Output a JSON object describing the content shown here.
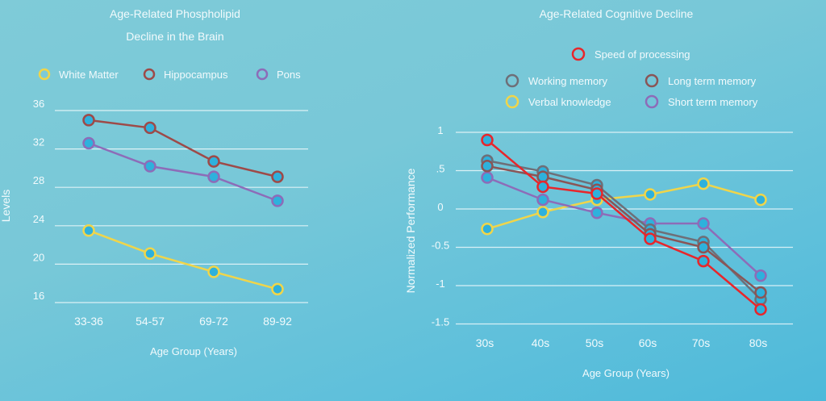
{
  "chart_data": [
    {
      "type": "line",
      "title": "Age-Related Phospholipid Decline in the Brain",
      "title_lines": [
        "Age-Related Phospholipid",
        "Decline in the Brain"
      ],
      "xlabel": "Age Group (Years)",
      "ylabel": "Levels",
      "categories": [
        "33-36",
        "54-57",
        "69-72",
        "89-92"
      ],
      "yticks": [
        16,
        20,
        24,
        28,
        32,
        36
      ],
      "ylim": [
        16,
        36
      ],
      "grid": true,
      "legend_position": "top",
      "series": [
        {
          "name": "White Matter",
          "color": "#f0d54a",
          "values": [
            23.5,
            21.1,
            19.2,
            17.4
          ]
        },
        {
          "name": "Hippocampus",
          "color": "#9e4a48",
          "values": [
            35.0,
            34.2,
            30.7,
            29.1
          ]
        },
        {
          "name": "Pons",
          "color": "#8d6cb8",
          "values": [
            32.6,
            30.2,
            29.1,
            26.6
          ]
        }
      ]
    },
    {
      "type": "line",
      "title": "Age-Related Cognitive Decline",
      "xlabel": "Age Group (Years)",
      "ylabel": "Normalized Performance",
      "categories": [
        "30s",
        "40s",
        "50s",
        "60s",
        "70s",
        "80s"
      ],
      "yticks": [
        1,
        0.5,
        0,
        -0.5,
        -1,
        -1.5
      ],
      "ytick_labels": [
        "1",
        ".5",
        "0",
        "-0.5",
        "-1",
        "-1.5"
      ],
      "ylim": [
        -1.5,
        1
      ],
      "grid": true,
      "legend_position": "top",
      "series": [
        {
          "name": "Verbal knowledge",
          "color": "#f0d54a",
          "values": [
            -0.26,
            -0.04,
            0.12,
            0.19,
            0.33,
            0.12
          ]
        },
        {
          "name": "Short term memory",
          "color": "#8d6cb8",
          "values": [
            0.41,
            0.12,
            -0.05,
            -0.19,
            -0.19,
            -0.87
          ]
        },
        {
          "name": "Working memory",
          "color": "#6e6f78",
          "values": [
            0.63,
            0.49,
            0.31,
            -0.27,
            -0.43,
            -1.18
          ]
        },
        {
          "name": "Long term memory",
          "color": "#8a5556",
          "values": [
            0.56,
            0.42,
            0.25,
            -0.33,
            -0.5,
            -1.09
          ]
        },
        {
          "name": "Speed of processing",
          "color": "#e8262b",
          "values": [
            0.9,
            0.29,
            0.2,
            -0.39,
            -0.68,
            -1.31
          ]
        }
      ]
    }
  ],
  "marker_fill": "#2eb1dc"
}
